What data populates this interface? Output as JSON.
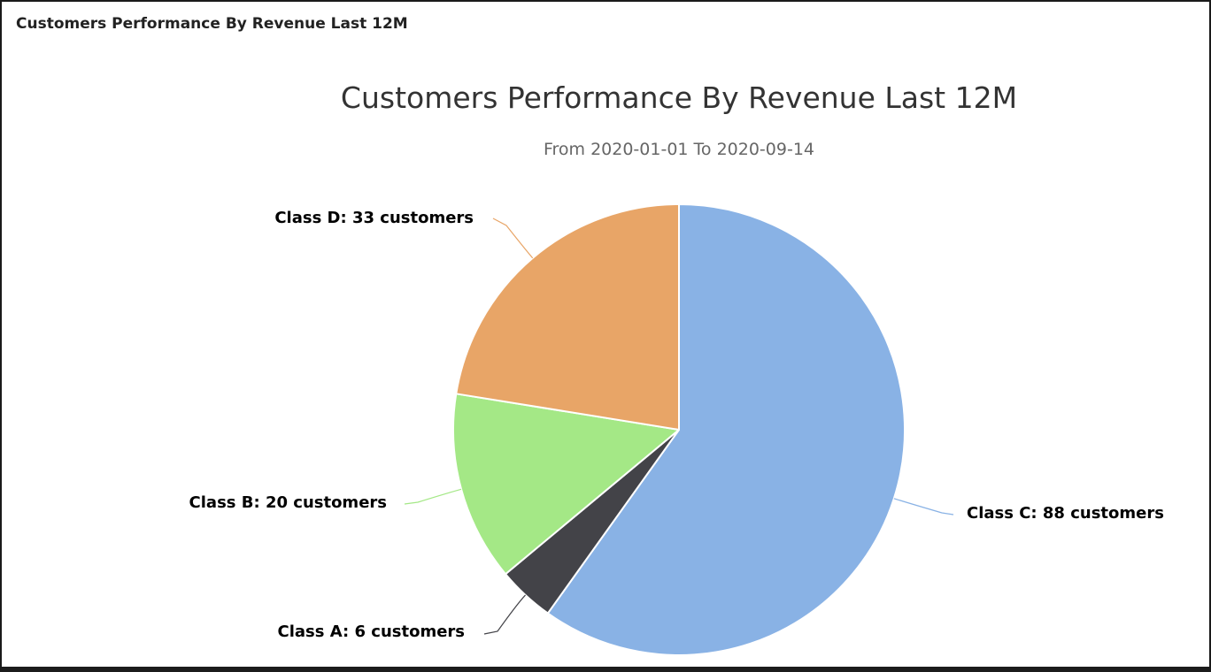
{
  "panel": {
    "title": "Customers Performance By Revenue Last 12M"
  },
  "chart_data": {
    "type": "pie",
    "title": "Customers Performance By Revenue Last 12M",
    "subtitle": "From 2020-01-01 To 2020-09-14",
    "slices": [
      {
        "name": "Class C",
        "value": 88,
        "label": "Class C: 88 customers",
        "color": "#89b2e5"
      },
      {
        "name": "Class A",
        "value": 6,
        "label": "Class A: 6 customers",
        "color": "#434348"
      },
      {
        "name": "Class B",
        "value": 20,
        "label": "Class B: 20 customers",
        "color": "#a4e886"
      },
      {
        "name": "Class D",
        "value": 33,
        "label": "Class D: 33 customers",
        "color": "#e8a567"
      }
    ]
  }
}
